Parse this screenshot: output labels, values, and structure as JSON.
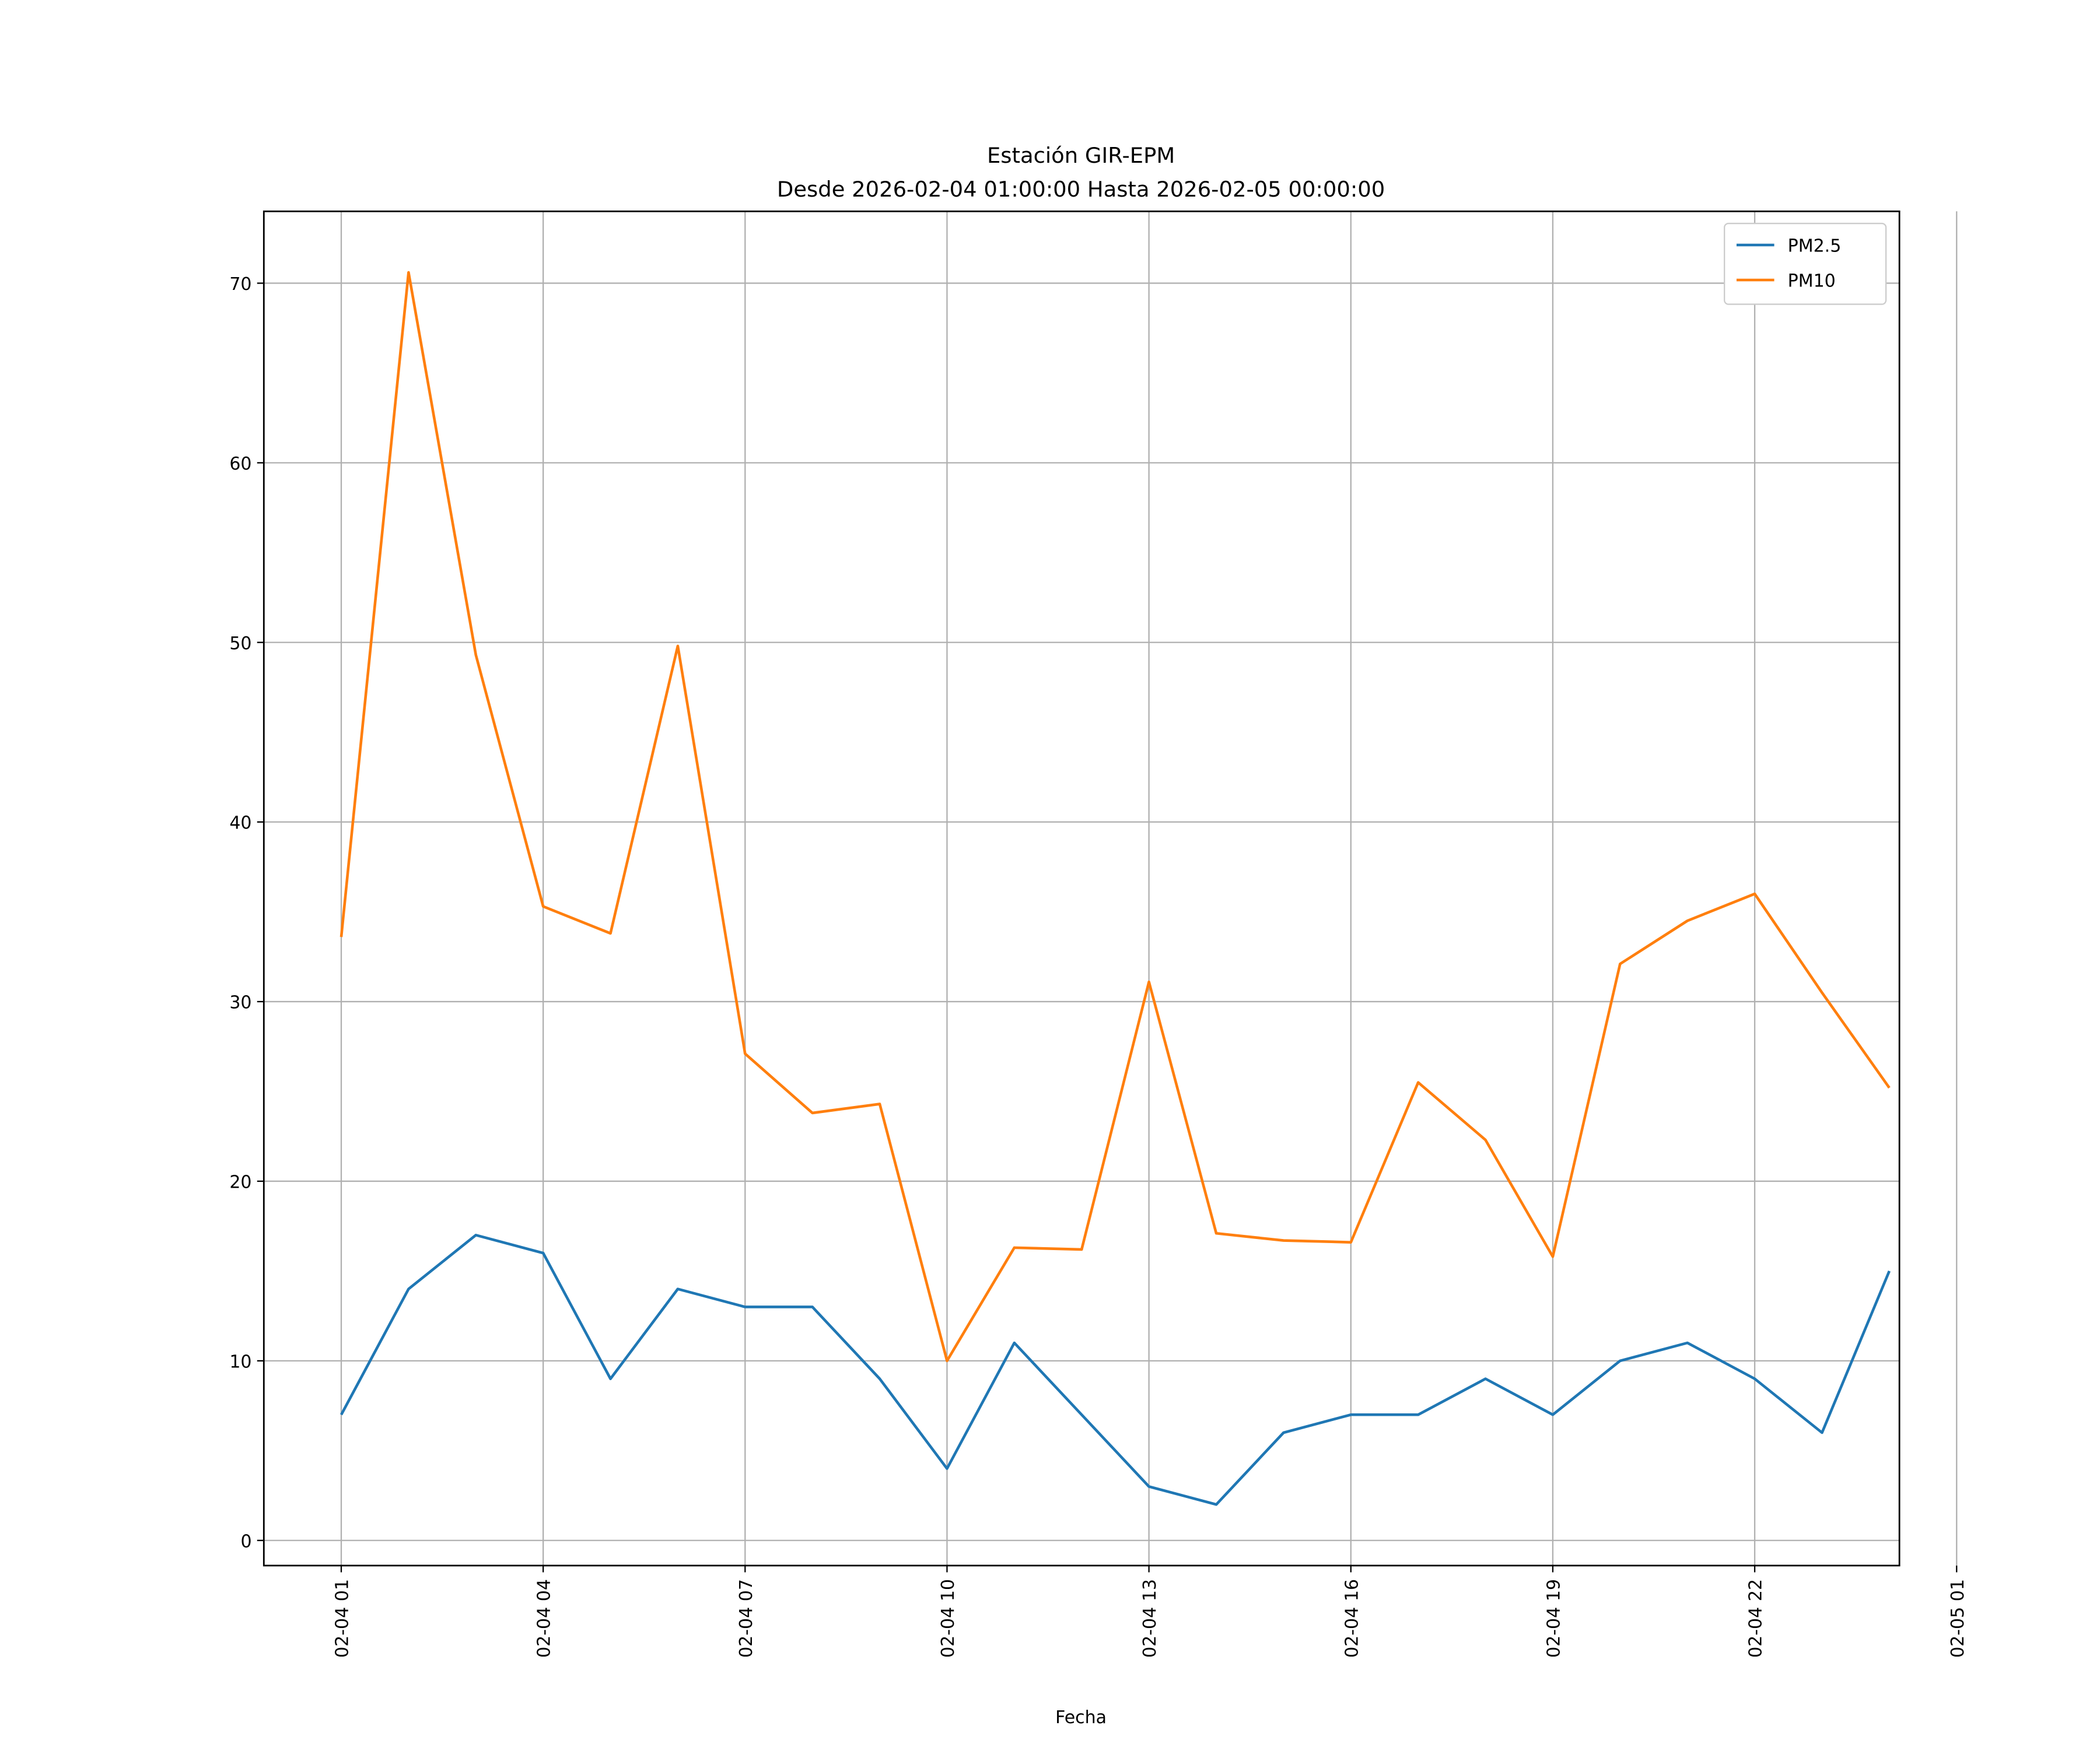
{
  "chart_data": {
    "type": "line",
    "title": "Estación GIR-EPM",
    "subtitle": "Desde 2026-02-04 01:00:00 Hasta 2026-02-05 00:00:00",
    "xlabel": "Fecha",
    "ylabel": "",
    "x_hours": [
      1,
      2,
      3,
      4,
      5,
      6,
      7,
      8,
      9,
      10,
      11,
      12,
      13,
      14,
      15,
      16,
      17,
      18,
      19,
      20,
      21,
      22,
      23,
      24
    ],
    "xlim_hours": [
      -0.15,
      24.15
    ],
    "ylim": [
      -1.4,
      74
    ],
    "xticks": [
      {
        "hour": 1,
        "label": "02-04 01"
      },
      {
        "hour": 4,
        "label": "02-04 04"
      },
      {
        "hour": 7,
        "label": "02-04 07"
      },
      {
        "hour": 10,
        "label": "02-04 10"
      },
      {
        "hour": 13,
        "label": "02-04 13"
      },
      {
        "hour": 16,
        "label": "02-04 16"
      },
      {
        "hour": 19,
        "label": "02-04 19"
      },
      {
        "hour": 22,
        "label": "02-04 22"
      },
      {
        "hour": 25,
        "label": "02-05 01"
      }
    ],
    "yticks": [
      {
        "value": 0,
        "label": "0"
      },
      {
        "value": 10,
        "label": "10"
      },
      {
        "value": 20,
        "label": "20"
      },
      {
        "value": 30,
        "label": "30"
      },
      {
        "value": 40,
        "label": "40"
      },
      {
        "value": 50,
        "label": "50"
      },
      {
        "value": 60,
        "label": "60"
      },
      {
        "value": 70,
        "label": "70"
      }
    ],
    "grid": true,
    "legend_position": "top-right",
    "series": [
      {
        "name": "PM2.5",
        "color": "#1f77b4",
        "values": [
          7,
          14,
          17,
          16,
          9,
          14,
          13,
          13,
          9,
          4,
          11,
          7,
          3,
          2,
          6,
          7,
          7,
          9,
          7,
          10,
          11,
          9,
          6,
          15
        ]
      },
      {
        "name": "PM10",
        "color": "#ff7f0e",
        "values": [
          33.6,
          70.6,
          49.3,
          35.3,
          33.8,
          49.8,
          27.1,
          23.8,
          24.3,
          10.0,
          16.3,
          16.2,
          31.1,
          17.1,
          16.7,
          16.6,
          25.5,
          22.3,
          15.8,
          32.1,
          34.5,
          36.0,
          30.5,
          25.2
        ]
      }
    ]
  }
}
